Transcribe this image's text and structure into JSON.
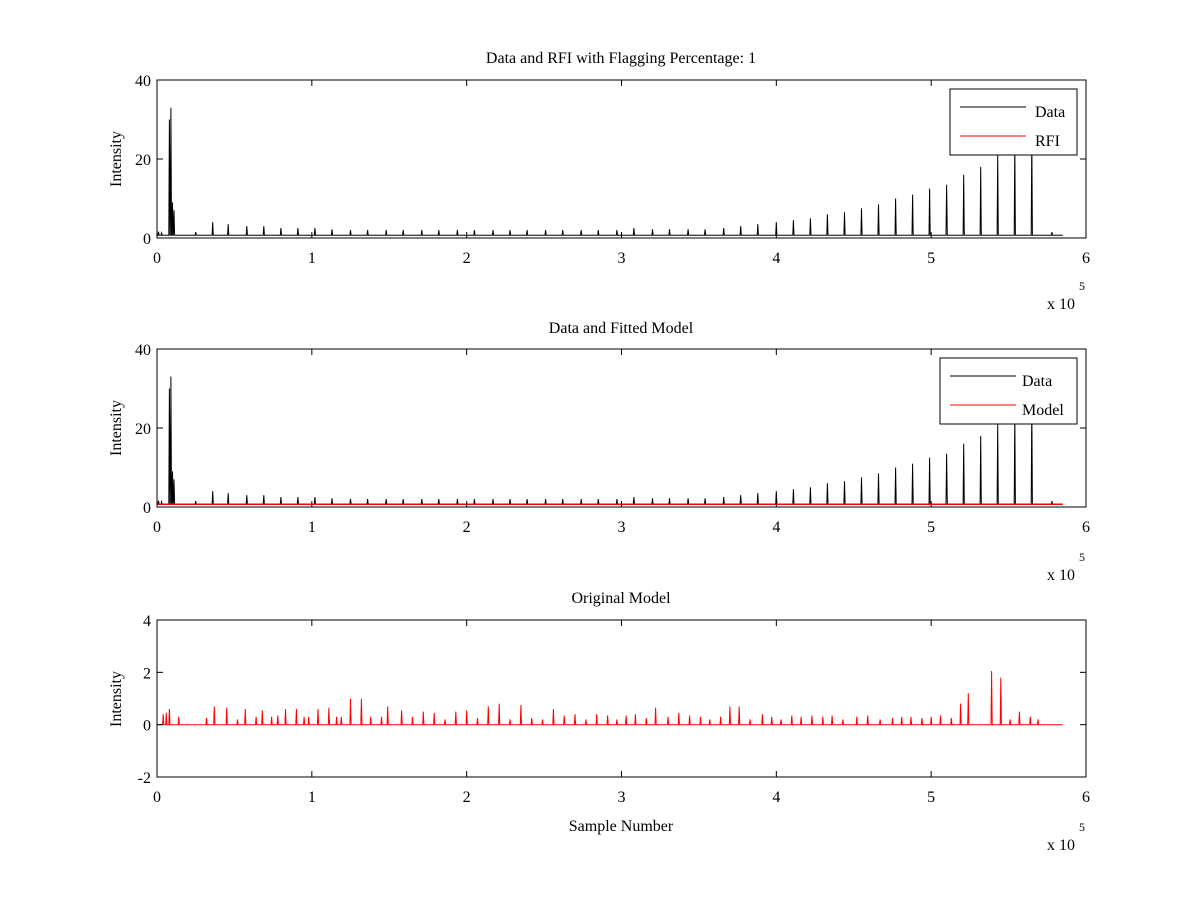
{
  "chart_data": [
    {
      "type": "line",
      "title": "Data and RFI with Flagging Percentage: 1",
      "xlabel": "",
      "ylabel": "Intensity",
      "xlim": [
        0,
        600000
      ],
      "ylim": [
        0,
        40
      ],
      "xticks": [
        0,
        1,
        2,
        3,
        4,
        5,
        6
      ],
      "yticks": [
        0,
        20,
        40
      ],
      "x_multiplier": "x 10",
      "x_multiplier_exponent": "5",
      "grid": false,
      "legend_position": "top-right",
      "series": [
        {
          "name": "Data",
          "color": "#000000",
          "baseline": 0.7,
          "spikes": [
            [
              1000,
              1.6
            ],
            [
              3000,
              1.3
            ],
            [
              8000,
              30
            ],
            [
              9000,
              33
            ],
            [
              10000,
              9
            ],
            [
              11000,
              7
            ],
            [
              25000,
              1.5
            ],
            [
              36000,
              4
            ],
            [
              46000,
              3.5
            ],
            [
              58000,
              3
            ],
            [
              69000,
              3
            ],
            [
              80000,
              2.5
            ],
            [
              91000,
              2.5
            ],
            [
              102000,
              2.5
            ],
            [
              113000,
              2.2
            ],
            [
              125000,
              2.0
            ],
            [
              136000,
              2.0
            ],
            [
              148000,
              2.0
            ],
            [
              159000,
              2.0
            ],
            [
              171000,
              2.0
            ],
            [
              182000,
              2.0
            ],
            [
              194000,
              2.0
            ],
            [
              205000,
              2.0
            ],
            [
              217000,
              2.0
            ],
            [
              228000,
              2.0
            ],
            [
              239000,
              2.0
            ],
            [
              251000,
              2.0
            ],
            [
              262000,
              2.0
            ],
            [
              274000,
              2.0
            ],
            [
              285000,
              2.0
            ],
            [
              297000,
              2.0
            ],
            [
              308000,
              2.5
            ],
            [
              320000,
              2.2
            ],
            [
              331000,
              2.2
            ],
            [
              343000,
              2.2
            ],
            [
              354000,
              2.2
            ],
            [
              366000,
              2.5
            ],
            [
              377000,
              3.0
            ],
            [
              388000,
              3.5
            ],
            [
              400000,
              4.0
            ],
            [
              411000,
              4.5
            ],
            [
              422000,
              5.0
            ],
            [
              433000,
              6.0
            ],
            [
              444000,
              6.5
            ],
            [
              455000,
              7.5
            ],
            [
              466000,
              8.5
            ],
            [
              477000,
              10.0
            ],
            [
              488000,
              11.0
            ],
            [
              499000,
              12.5
            ],
            [
              510000,
              13.5
            ],
            [
              521000,
              16.0
            ],
            [
              532000,
              18.0
            ],
            [
              543000,
              21.0
            ],
            [
              554000,
              24.0
            ],
            [
              565000,
              26.0
            ],
            [
              578000,
              1.5
            ]
          ],
          "x_end": 585000
        },
        {
          "name": "RFI",
          "color": "#ff0000",
          "values": []
        }
      ]
    },
    {
      "type": "line",
      "title": "Data and Fitted Model",
      "xlabel": "",
      "ylabel": "Intensity",
      "xlim": [
        0,
        600000
      ],
      "ylim": [
        0,
        40
      ],
      "xticks": [
        0,
        1,
        2,
        3,
        4,
        5,
        6
      ],
      "yticks": [
        0,
        20,
        40
      ],
      "x_multiplier": "x 10",
      "x_multiplier_exponent": "5",
      "grid": false,
      "legend_position": "top-right",
      "series": [
        {
          "name": "Data",
          "color": "#000000",
          "same_as": "chart_data.0.series.0"
        },
        {
          "name": "Model",
          "color": "#ff0000",
          "baseline": 0.7,
          "x_end": 585000
        }
      ]
    },
    {
      "type": "line",
      "title": "Original Model",
      "xlabel": "Sample Number",
      "ylabel": "Intensity",
      "xlim": [
        0,
        600000
      ],
      "ylim": [
        -2,
        4
      ],
      "xticks": [
        0,
        1,
        2,
        3,
        4,
        5,
        6
      ],
      "yticks": [
        -2,
        0,
        2,
        4
      ],
      "x_multiplier": "x 10",
      "x_multiplier_exponent": "5",
      "grid": false,
      "series": [
        {
          "name": "",
          "color": "#ff0000",
          "baseline": 0.0,
          "x_end": 585000,
          "spikes": [
            [
              4000,
              0.4
            ],
            [
              6000,
              0.45
            ],
            [
              8000,
              0.6
            ],
            [
              14000,
              0.3
            ],
            [
              32000,
              0.25
            ],
            [
              37000,
              0.7
            ],
            [
              45000,
              0.65
            ],
            [
              52000,
              0.2
            ],
            [
              57000,
              0.6
            ],
            [
              64000,
              0.3
            ],
            [
              68000,
              0.55
            ],
            [
              74000,
              0.3
            ],
            [
              78000,
              0.35
            ],
            [
              83000,
              0.6
            ],
            [
              90000,
              0.6
            ],
            [
              95000,
              0.3
            ],
            [
              98000,
              0.3
            ],
            [
              104000,
              0.6
            ],
            [
              111000,
              0.65
            ],
            [
              116000,
              0.3
            ],
            [
              119000,
              0.3
            ],
            [
              125000,
              1.0
            ],
            [
              132000,
              1.0
            ],
            [
              138000,
              0.3
            ],
            [
              145000,
              0.3
            ],
            [
              149000,
              0.7
            ],
            [
              158000,
              0.55
            ],
            [
              165000,
              0.3
            ],
            [
              172000,
              0.5
            ],
            [
              179000,
              0.45
            ],
            [
              186000,
              0.2
            ],
            [
              193000,
              0.5
            ],
            [
              200000,
              0.55
            ],
            [
              207000,
              0.25
            ],
            [
              214000,
              0.7
            ],
            [
              221000,
              0.8
            ],
            [
              228000,
              0.2
            ],
            [
              235000,
              0.75
            ],
            [
              242000,
              0.25
            ],
            [
              249000,
              0.2
            ],
            [
              256000,
              0.6
            ],
            [
              263000,
              0.35
            ],
            [
              270000,
              0.4
            ],
            [
              277000,
              0.2
            ],
            [
              284000,
              0.4
            ],
            [
              291000,
              0.35
            ],
            [
              297000,
              0.2
            ],
            [
              303000,
              0.35
            ],
            [
              309000,
              0.4
            ],
            [
              316000,
              0.25
            ],
            [
              322000,
              0.65
            ],
            [
              330000,
              0.3
            ],
            [
              337000,
              0.45
            ],
            [
              344000,
              0.35
            ],
            [
              351000,
              0.3
            ],
            [
              357000,
              0.2
            ],
            [
              364000,
              0.3
            ],
            [
              370000,
              0.7
            ],
            [
              376000,
              0.7
            ],
            [
              383000,
              0.2
            ],
            [
              391000,
              0.4
            ],
            [
              397000,
              0.3
            ],
            [
              403000,
              0.2
            ],
            [
              410000,
              0.35
            ],
            [
              416000,
              0.3
            ],
            [
              423000,
              0.35
            ],
            [
              430000,
              0.3
            ],
            [
              436000,
              0.35
            ],
            [
              443000,
              0.2
            ],
            [
              452000,
              0.3
            ],
            [
              459000,
              0.35
            ],
            [
              467000,
              0.2
            ],
            [
              475000,
              0.25
            ],
            [
              481000,
              0.3
            ],
            [
              487000,
              0.3
            ],
            [
              494000,
              0.25
            ],
            [
              500000,
              0.3
            ],
            [
              506000,
              0.35
            ],
            [
              513000,
              0.25
            ],
            [
              519000,
              0.8
            ],
            [
              524000,
              1.2
            ],
            [
              539000,
              2.05
            ],
            [
              545000,
              1.8
            ],
            [
              551000,
              0.2
            ],
            [
              557000,
              0.5
            ],
            [
              564000,
              0.3
            ],
            [
              569000,
              0.2
            ]
          ]
        }
      ]
    }
  ]
}
